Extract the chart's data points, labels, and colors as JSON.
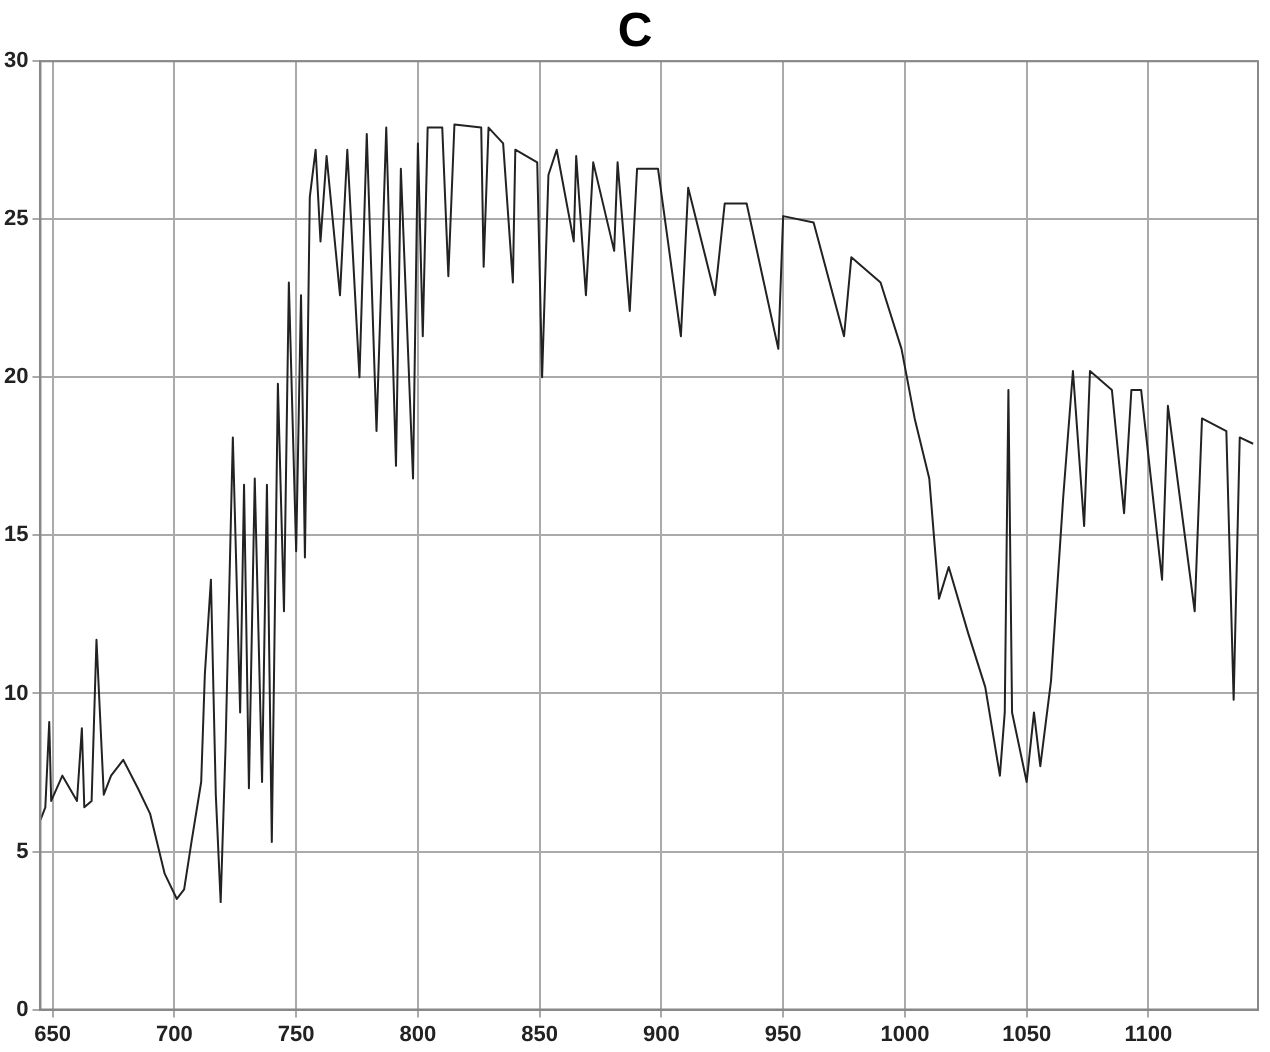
{
  "chart_data": {
    "type": "line",
    "title": "C",
    "xlim": [
      645,
      1145
    ],
    "ylim": [
      0,
      30
    ],
    "xticks": [
      650,
      700,
      750,
      800,
      850,
      900,
      950,
      1000,
      1050,
      1100
    ],
    "yticks": [
      0,
      5,
      10,
      15,
      20,
      25,
      30
    ],
    "grid": true,
    "legend": false,
    "marker": "none",
    "line_style": "solid",
    "series": [
      {
        "color": "#222222",
        "x": [
          645,
          647,
          648.6,
          649.4,
          654,
          660,
          662,
          663,
          666,
          668,
          671,
          674,
          679,
          685,
          690,
          696,
          701,
          704,
          707,
          711,
          712.5,
          715,
          717,
          719,
          721,
          724,
          727,
          728.6,
          730.6,
          733,
          736,
          738,
          740,
          742.5,
          745,
          747,
          750,
          752,
          753.6,
          755.6,
          758,
          760,
          762.5,
          768,
          771,
          776,
          779,
          783,
          787,
          791,
          793,
          798,
          800,
          802,
          804,
          810,
          812.5,
          815,
          826,
          827,
          829,
          835,
          839,
          840,
          849,
          851,
          853.6,
          857,
          864,
          865,
          869,
          872,
          880.6,
          882,
          887,
          890,
          898.6,
          908,
          911,
          922,
          926,
          935,
          948,
          950,
          962.5,
          975,
          978,
          990,
          998.6,
          1004,
          1010,
          1014,
          1018,
          1026,
          1033,
          1039,
          1041,
          1042.5,
          1044,
          1050,
          1053,
          1055.6,
          1060,
          1065,
          1069,
          1073.6,
          1076,
          1085,
          1090,
          1093,
          1097,
          1105.6,
          1108,
          1119,
          1122,
          1132,
          1135,
          1137.5,
          1143
        ],
        "values": [
          6,
          6.4,
          9.1,
          6.6,
          7.4,
          6.6,
          8.9,
          6.4,
          6.6,
          11.7,
          6.8,
          7.4,
          7.9,
          7,
          6.2,
          4.3,
          3.5,
          3.8,
          5.3,
          7.2,
          10.6,
          13.6,
          6.8,
          3.4,
          8.3,
          18.1,
          9.4,
          16.6,
          7,
          16.8,
          7.2,
          16.6,
          5.3,
          19.8,
          12.6,
          23,
          14.5,
          22.6,
          14.3,
          25.7,
          27.2,
          24.3,
          27,
          22.6,
          27.2,
          20,
          27.7,
          18.3,
          27.9,
          17.2,
          26.6,
          16.8,
          27.4,
          21.3,
          27.9,
          27.9,
          23.2,
          28,
          27.9,
          23.5,
          27.9,
          27.4,
          23,
          27.2,
          26.8,
          20,
          26.4,
          27.2,
          24.3,
          27,
          22.6,
          26.8,
          24,
          26.8,
          22.1,
          26.6,
          26.6,
          21.3,
          26,
          22.6,
          25.5,
          25.5,
          20.9,
          25.1,
          24.9,
          21.3,
          23.8,
          23,
          20.9,
          18.7,
          16.8,
          13,
          14,
          11.9,
          10.2,
          7.4,
          9.4,
          19.6,
          9.4,
          7.2,
          9.4,
          7.7,
          10.4,
          16.2,
          20.2,
          15.3,
          20.2,
          19.6,
          15.7,
          19.6,
          19.6,
          13.6,
          19.1,
          12.6,
          18.7,
          18.3,
          9.8,
          18.1,
          17.9
        ]
      }
    ]
  }
}
